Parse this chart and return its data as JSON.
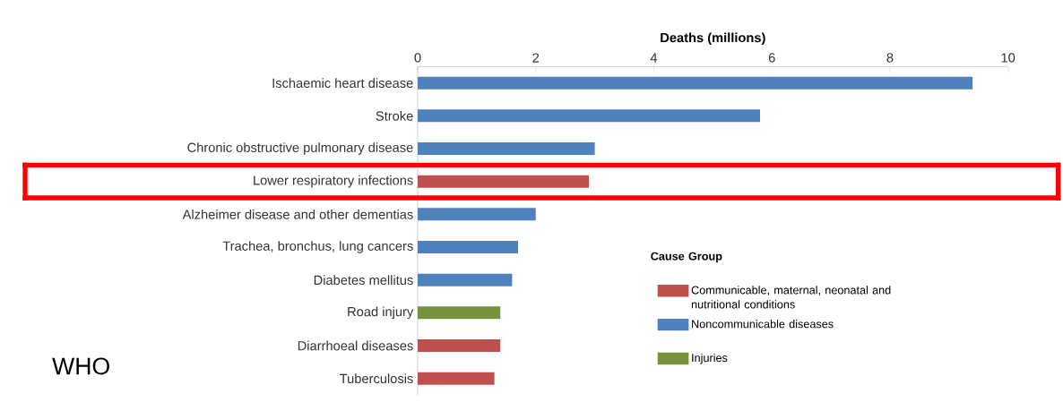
{
  "chart_data": {
    "type": "bar",
    "orientation": "horizontal",
    "xlabel": "Deaths (millions)",
    "legend_title": "Cause Group",
    "categories": [
      "Ischaemic heart disease",
      "Stroke",
      "Chronic obstructive pulmonary disease",
      "Lower respiratory infections",
      "Alzheimer disease and other dementias",
      "Trachea, bronchus, lung cancers",
      "Diabetes mellitus",
      "Road injury",
      "Diarrhoeal diseases",
      "Tuberculosis"
    ],
    "series": [
      {
        "name": "Communicable, maternal, neonatal and nutritional conditions",
        "color": "#c0504d",
        "values": [
          null,
          null,
          null,
          2.9,
          null,
          null,
          null,
          null,
          1.4,
          1.3
        ]
      },
      {
        "name": "Noncommunicable diseases",
        "color": "#4f81bd",
        "values": [
          9.4,
          5.8,
          3.0,
          null,
          2.0,
          1.7,
          1.6,
          null,
          null,
          null
        ]
      },
      {
        "name": "Injuries",
        "color": "#76923c",
        "values": [
          null,
          null,
          null,
          null,
          null,
          null,
          null,
          1.4,
          null,
          null
        ]
      }
    ],
    "xlim": [
      0,
      10
    ],
    "xticks": [
      0,
      2,
      4,
      6,
      8,
      10
    ],
    "annotations": [
      "WHO"
    ],
    "legend": "bottom right",
    "grid": false
  }
}
